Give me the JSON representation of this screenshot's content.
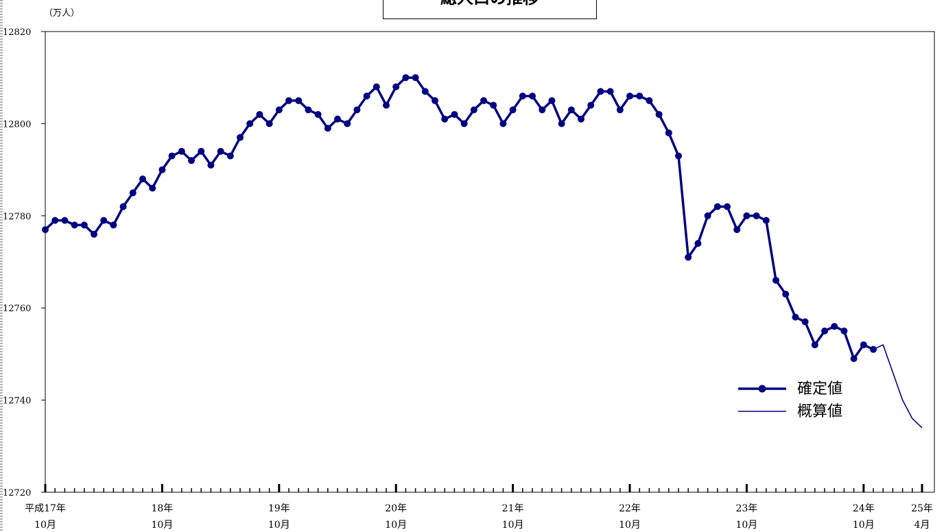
{
  "chart_data": {
    "type": "line",
    "title": "総人口の推移",
    "ylabel": "（万人）",
    "xlabel": "",
    "ylim": [
      12720,
      12820
    ],
    "yticks": [
      12720,
      12740,
      12760,
      12780,
      12800,
      12820
    ],
    "x_range": [
      "2005-10",
      "2013-04"
    ],
    "x_labels": [
      {
        "x": "2005-10",
        "line1": "平成17年",
        "line2": "10月"
      },
      {
        "x": "2006-10",
        "line1": "18年",
        "line2": "10月"
      },
      {
        "x": "2007-10",
        "line1": "19年",
        "line2": "10月"
      },
      {
        "x": "2008-10",
        "line1": "20年",
        "line2": "10月"
      },
      {
        "x": "2009-10",
        "line1": "21年",
        "line2": "10月"
      },
      {
        "x": "2010-10",
        "line1": "22年",
        "line2": "10月"
      },
      {
        "x": "2011-10",
        "line1": "23年",
        "line2": "10月"
      },
      {
        "x": "2012-10",
        "line1": "24年",
        "line2": "10月"
      },
      {
        "x": "2013-04",
        "line1": "25年",
        "line2": "4月"
      }
    ],
    "series": [
      {
        "name": "確定値",
        "color": "#000080",
        "style": "thick line with circle markers",
        "start": "2005-10",
        "values": [
          12777,
          12779,
          12779,
          12778,
          12778,
          12776,
          12779,
          12778,
          12782,
          12785,
          12788,
          12786,
          12790,
          12793,
          12794,
          12792,
          12794,
          12791,
          12794,
          12793,
          12797,
          12800,
          12802,
          12800,
          12803,
          12805,
          12805,
          12803,
          12802,
          12799,
          12801,
          12800,
          12803,
          12806,
          12808,
          12804,
          12808,
          12810,
          12810,
          12807,
          12805,
          12801,
          12802,
          12800,
          12803,
          12805,
          12804,
          12800,
          12803,
          12806,
          12806,
          12803,
          12805,
          12800,
          12803,
          12801,
          12804,
          12807,
          12807,
          12803,
          12806,
          12806,
          12805,
          12802,
          12798,
          12793,
          12771,
          12774,
          12780,
          12782,
          12782,
          12777,
          12780,
          12780,
          12779,
          12766,
          12763,
          12758,
          12757,
          12752,
          12755,
          12756,
          12755,
          12749,
          12752,
          12751
        ]
      },
      {
        "name": "概算値",
        "color": "#000080",
        "style": "thin line",
        "start": "2012-11",
        "values": [
          12751,
          12752,
          12746,
          12740,
          12736,
          12734
        ]
      }
    ],
    "legend": {
      "position": "lower-right"
    },
    "grid": false
  }
}
